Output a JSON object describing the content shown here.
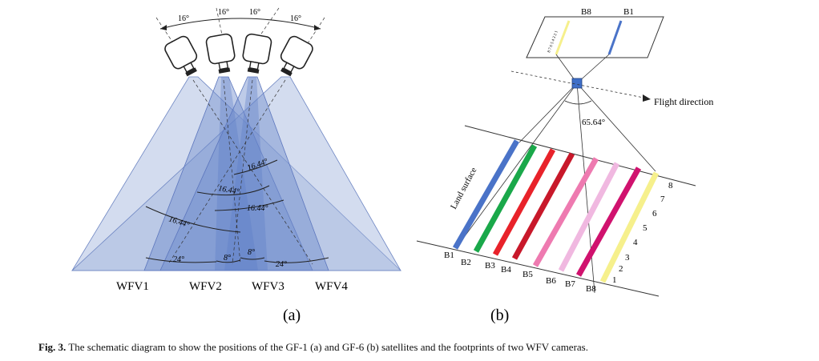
{
  "panel_a": {
    "label": "(a)",
    "cameras": [
      "WFV1",
      "WFV2",
      "WFV3",
      "WFV4"
    ],
    "top_angles": [
      "16°",
      "16°",
      "16°",
      "16°"
    ],
    "fov_angles": [
      "16.44°",
      "16.44°",
      "16.44°",
      "16.44°"
    ],
    "bottom_angles": [
      "24°",
      "8°",
      "8°",
      "24°"
    ],
    "colors": {
      "fill": "#9db1dc",
      "stroke": "#6d85c2"
    }
  },
  "panel_b": {
    "label": "(b)",
    "sensor_bands": [
      "B8",
      "B1"
    ],
    "flight_direction": "Flight direction",
    "fov_angle": "65.64°",
    "land_surface": "Land surface",
    "ground_bands": [
      "B1",
      "B2",
      "B3",
      "B4",
      "B5",
      "B6",
      "B7",
      "B8"
    ],
    "band_numbers": [
      "1",
      "2",
      "3",
      "4",
      "5",
      "6",
      "7",
      "8"
    ],
    "strip_colors": [
      "#4a73c8",
      "#1aa84a",
      "#e8222a",
      "#c8182a",
      "#ee7ab0",
      "#f0b8e0",
      "#d0126e",
      "#f6f08c"
    ],
    "sensor_digits": "8 7 6 5 4 3 2 1"
  },
  "caption": {
    "label": "Fig. 3.",
    "text": "The schematic diagram to show the positions of the GF-1 (a) and GF-6 (b) satellites and the footprints of two WFV cameras."
  }
}
